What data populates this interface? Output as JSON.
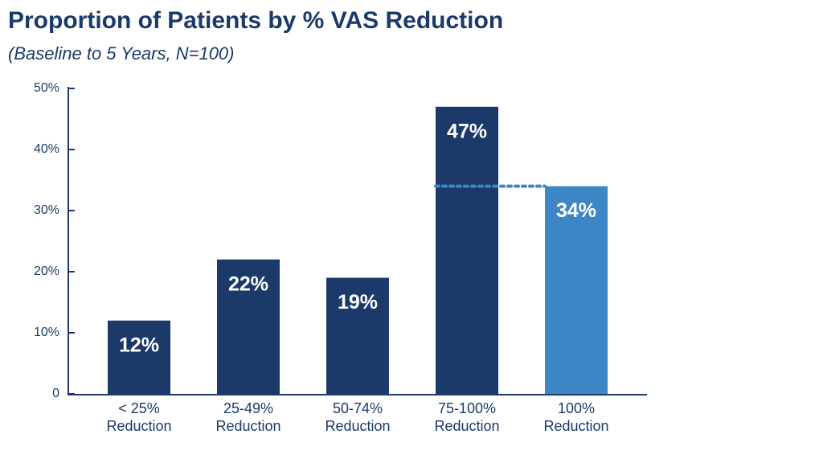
{
  "chart_data": {
    "type": "bar",
    "title": "Proportion of Patients by % VAS Reduction",
    "subtitle": "(Baseline to 5 Years, N=100)",
    "categories": [
      [
        "< 25%",
        "Reduction"
      ],
      [
        "25-49%",
        "Reduction"
      ],
      [
        "50-74%",
        "Reduction"
      ],
      [
        "75-100%",
        "Reduction"
      ],
      [
        "100%",
        "Reduction"
      ]
    ],
    "values": [
      12,
      22,
      19,
      47,
      34
    ],
    "value_labels": [
      "12%",
      "22%",
      "19%",
      "47%",
      "34%"
    ],
    "colors": [
      "#1b3a6a",
      "#1b3a6a",
      "#1b3a6a",
      "#1b3a6a",
      "#3d87c7"
    ],
    "ylim": [
      0,
      50
    ],
    "yticks": [
      0,
      {
        "value": 10,
        "label": "10%"
      },
      {
        "value": 20,
        "label": "20%"
      },
      {
        "value": 30,
        "label": "30%"
      },
      {
        "value": 40,
        "label": "40%"
      },
      {
        "value": 50,
        "label": "50%"
      }
    ],
    "grid": false
  }
}
